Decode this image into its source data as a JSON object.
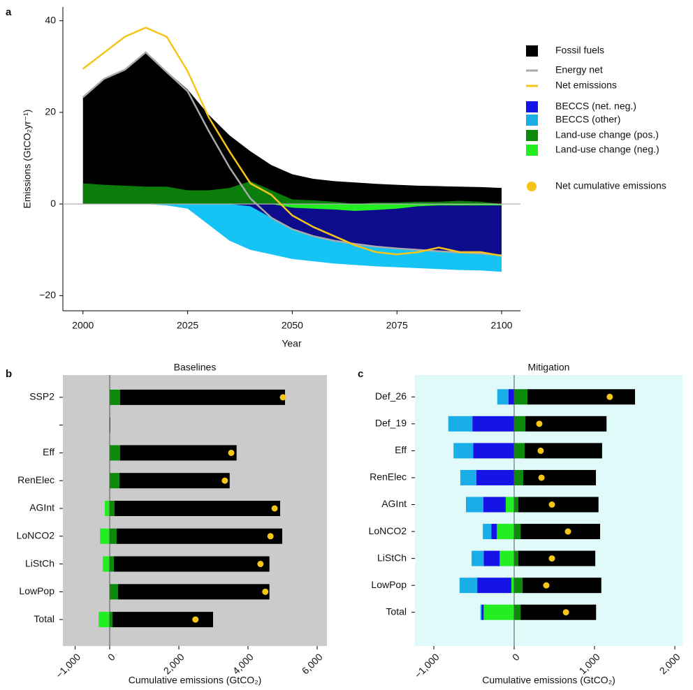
{
  "chart_data": [
    {
      "type": "area",
      "label": "a",
      "xlabel": "Year",
      "ylabel": "Emissions (GtCO₂yr⁻¹)",
      "x": [
        2000,
        2005,
        2010,
        2015,
        2020,
        2025,
        2030,
        2035,
        2040,
        2045,
        2050,
        2055,
        2060,
        2065,
        2070,
        2075,
        2080,
        2085,
        2090,
        2095,
        2100
      ],
      "xlim": [
        1995.2,
        2104.5
      ],
      "xticks": [
        2000,
        2025,
        2050,
        2075,
        2100
      ],
      "ylim": [
        -23.3,
        43
      ],
      "yticks": [
        40,
        20,
        0,
        {
          "value": -20,
          "label": "−20"
        }
      ],
      "series": [
        {
          "mark": "area",
          "color": "#000000",
          "values": [
            23.5,
            27.5,
            29.5,
            33.3,
            29,
            25,
            19.5,
            15,
            11.5,
            8.5,
            6.5,
            5.5,
            5,
            4.7,
            4.4,
            4.2,
            4,
            3.9,
            3.8,
            3.7,
            3.5
          ]
        },
        {
          "mark": "area",
          "color": "#0b7d0b",
          "values": [
            4.5,
            4.2,
            4,
            3.8,
            3.8,
            3,
            3,
            3.5,
            5,
            3,
            1,
            0.8,
            0.5,
            0,
            0.3,
            0.3,
            0.5,
            0.5,
            0.7,
            0.5,
            0
          ]
        },
        {
          "mark": "area",
          "color": "#15c3f5",
          "values": [
            0,
            0,
            0,
            0,
            -0.3,
            -1,
            -4.5,
            -8,
            -10,
            -11,
            -12,
            -12.5,
            -13,
            -13.3,
            -13.6,
            -13.8,
            -14,
            -14.2,
            -14.4,
            -14.5,
            -14.8
          ]
        },
        {
          "mark": "area",
          "color": "#0c0c8c",
          "values": [
            0,
            0,
            0,
            0,
            0,
            0,
            0,
            0,
            -0.5,
            -3,
            -5.5,
            -7,
            -8,
            -8.7,
            -9.3,
            -9.7,
            -10,
            -10.3,
            -10.6,
            -10.8,
            -11.2
          ]
        },
        {
          "mark": "area",
          "color": "#22ee22",
          "values": [
            0,
            0,
            0,
            0,
            0,
            0,
            0,
            0,
            0,
            0,
            -0.8,
            -1,
            -1.2,
            -1.5,
            -1.3,
            -1,
            -0.5,
            -0.3,
            -0.3,
            -0.3,
            -0.3
          ]
        },
        {
          "mark": "line",
          "color": "#aaaaaa",
          "values": [
            23.3,
            27.3,
            29.3,
            33.1,
            28.8,
            24.6,
            16,
            8,
            1.2,
            -3,
            -5.5,
            -7,
            -8,
            -8.7,
            -9.3,
            -9.7,
            -10,
            -10.3,
            -10.6,
            -10.8,
            -11.2
          ]
        },
        {
          "mark": "line",
          "color": "#f5c518",
          "values": [
            29.5,
            33,
            36.5,
            38.5,
            36.5,
            29,
            19,
            11.5,
            4.5,
            2,
            -2.5,
            -5,
            -7,
            -9,
            -10.5,
            -11,
            -10.5,
            -9.5,
            -10.5,
            -10.5,
            -11.3
          ]
        }
      ],
      "legend": [
        {
          "label": "Fossil fuels",
          "color": "#000000",
          "kind": "area"
        },
        {
          "label": "Energy net",
          "color": "#aaaaaa",
          "kind": "line"
        },
        {
          "label": "Net emissions",
          "color": "#f5c518",
          "kind": "line"
        },
        {
          "label": "BECCS (net. neg.)",
          "color": "#1414e6",
          "kind": "area"
        },
        {
          "label": "BECCS (other)",
          "color": "#1aaee8",
          "kind": "area"
        },
        {
          "label": "Land-use change (pos.)",
          "color": "#0b8a0b",
          "kind": "area"
        },
        {
          "label": "Land-use change (neg.)",
          "color": "#22ee22",
          "kind": "area"
        },
        {
          "label": "Net cumulative emissions",
          "color": "#f5c518",
          "kind": "dot"
        }
      ]
    },
    {
      "type": "bar",
      "label": "b",
      "title": "Baselines",
      "xlabel": "Cumulative emissions (GtCO₂)",
      "background": "#cbcbcb",
      "categories": [
        "SSP2",
        null,
        "Eff",
        "RenElec",
        "AGInt",
        "LoNCO2",
        "LiStCh",
        "LowPop",
        "Total"
      ],
      "xlim": [
        -1354,
        6283
      ],
      "xticks": [
        {
          "value": -1000,
          "label": "−1,000"
        },
        0,
        {
          "value": 2000,
          "label": "2,000"
        },
        {
          "value": 4000,
          "label": "4,000"
        },
        {
          "value": 6000,
          "label": "6,000"
        }
      ],
      "series": [
        {
          "mark": "bar",
          "color": "#22ee22",
          "values": [
            null,
            null,
            null,
            null,
            -140,
            -280,
            -200,
            null,
            -320
          ]
        },
        {
          "mark": "bar",
          "color": "#0b8a0b",
          "values": [
            300,
            20,
            300,
            280,
            140,
            200,
            120,
            240,
            80
          ]
        },
        {
          "mark": "bar",
          "color": "#000000",
          "values": [
            4770,
            null,
            3370,
            3190,
            4790,
            4790,
            4500,
            4380,
            2910
          ]
        },
        {
          "mark": "dot",
          "color": "#f5c518",
          "values": [
            5010,
            null,
            3515,
            3330,
            4770,
            4650,
            4360,
            4500,
            2480
          ]
        }
      ]
    },
    {
      "type": "bar",
      "label": "c",
      "title": "Mitigation",
      "xlabel": "Cumulative emissions (GtCO₂)",
      "background": "#e0fafa",
      "categories": [
        "Def_26",
        "Def_19",
        "Eff",
        "RenElec",
        "AGInt",
        "LoNCO2",
        "LiStCh",
        "LowPop",
        "Total"
      ],
      "xlim": [
        -1235,
        2096
      ],
      "xticks": [
        {
          "value": -1000,
          "label": "−1,000"
        },
        0,
        {
          "value": 1000,
          "label": "1,000"
        },
        {
          "value": 2000,
          "label": "2,000"
        }
      ],
      "series": [
        {
          "mark": "bar",
          "color": "#22ee22",
          "values": [
            null,
            null,
            null,
            null,
            -105,
            -215,
            -180,
            -35,
            -380
          ]
        },
        {
          "mark": "bar",
          "color": "#1414e6",
          "values": [
            -70,
            -520,
            -510,
            -470,
            -280,
            -70,
            -200,
            -425,
            -25
          ]
        },
        {
          "mark": "bar",
          "color": "#1aaee8",
          "values": [
            -140,
            -300,
            -245,
            -200,
            -215,
            -105,
            -150,
            -220,
            -15
          ]
        },
        {
          "mark": "bar",
          "color": "#0b8a0b",
          "values": [
            165,
            140,
            130,
            113,
            50,
            80,
            50,
            105,
            80
          ]
        },
        {
          "mark": "bar",
          "color": "#000000",
          "values": [
            1340,
            1010,
            965,
            905,
            1000,
            990,
            960,
            980,
            940
          ]
        },
        {
          "mark": "dot",
          "color": "#f5c518",
          "values": [
            1190,
            313,
            330,
            340,
            470,
            670,
            470,
            400,
            645
          ]
        }
      ]
    }
  ]
}
